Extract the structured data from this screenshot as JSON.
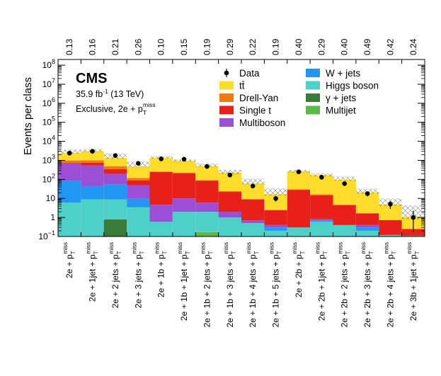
{
  "chart_data": {
    "type": "bar",
    "stacked": true,
    "log_y": true,
    "ylim": [
      0.1,
      200000000
    ],
    "ylabel": "Events per class",
    "y_ticks": [
      {
        "value": 0.1,
        "base": "10",
        "exp": "−1"
      },
      {
        "value": 1,
        "label": "1"
      },
      {
        "value": 10,
        "label": "10"
      },
      {
        "value": 100,
        "base": "10",
        "exp": "2"
      },
      {
        "value": 1000,
        "base": "10",
        "exp": "3"
      },
      {
        "value": 10000,
        "base": "10",
        "exp": "4"
      },
      {
        "value": 100000,
        "base": "10",
        "exp": "5"
      },
      {
        "value": 1000000,
        "base": "10",
        "exp": "6"
      },
      {
        "value": 10000000,
        "base": "10",
        "exp": "7"
      },
      {
        "value": 100000000,
        "base": "10",
        "exp": "8"
      }
    ],
    "categories": [
      "2e + p_T^miss",
      "2e + 1jet + p_T^miss",
      "2e + 2 jets + p_T^miss",
      "2e + 3 jets + p_T^miss",
      "2e + 1b + p_T^miss",
      "2e + 1b + 1jet + p_T^miss",
      "2e + 1b + 2 jets + p_T^miss",
      "2e + 1b + 3 jets + p_T^miss",
      "2e + 1b + 4 jets + p_T^miss",
      "2e + 1b + 5 jets + p_T^miss",
      "2e + 2b + p_T^miss",
      "2e + 2b + 1jet + p_T^miss",
      "2e + 2b + 2 jets + p_T^miss",
      "2e + 2b + 3 jets + p_T^miss",
      "2e + 2b + 4 jets + p_T^miss",
      "2e + 3b + 1jet + p_T^miss"
    ],
    "p_values": [
      "0.13",
      "0.16",
      "0.21",
      "0.26",
      "0.10",
      "0.15",
      "0.19",
      "0.29",
      "0.22",
      "0.19",
      "0.40",
      "0.29",
      "0.40",
      "0.49",
      "0.42",
      "0.24"
    ],
    "series": [
      {
        "name": "Multijet",
        "color": "#5cb849",
        "values": [
          0,
          0,
          0,
          0,
          0,
          0,
          0.17,
          0,
          0,
          0,
          0,
          0,
          0,
          0,
          0,
          0
        ]
      },
      {
        "name": "γ + jets",
        "color": "#3a7a3a",
        "values": [
          0,
          0,
          0.8,
          0,
          0,
          0,
          0,
          0,
          0,
          0,
          0,
          0,
          0,
          0,
          0,
          0
        ]
      },
      {
        "name": "Higgs boson",
        "color": "#4dd0c8",
        "values": [
          6,
          9,
          8,
          3.5,
          0.6,
          2,
          1.8,
          1,
          0.5,
          0.2,
          0.3,
          0.6,
          0.4,
          0.2,
          0.12,
          0.11
        ]
      },
      {
        "name": "W + jets",
        "color": "#2196f3",
        "values": [
          80,
          35,
          45,
          6,
          0,
          0,
          0,
          0,
          0,
          0.1,
          0,
          0.1,
          0,
          0.1,
          0,
          0
        ]
      },
      {
        "name": "Multiboson",
        "color": "#9b4fd6",
        "values": [
          600,
          500,
          140,
          40,
          4,
          8,
          4,
          1,
          0.2,
          0.1,
          0,
          0.1,
          0,
          0.1,
          0,
          0
        ]
      },
      {
        "name": "Single t",
        "color": "#e8201a",
        "values": [
          50,
          200,
          150,
          40,
          240,
          200,
          80,
          20,
          8,
          2,
          28,
          14,
          4,
          1.2,
          0.6,
          0.14
        ]
      },
      {
        "name": "Drell-Yan",
        "color": "#ee7a10",
        "values": [
          250,
          250,
          150,
          30,
          15,
          20,
          6,
          2,
          0.8,
          0.1,
          2,
          1.5,
          0.4,
          0.1,
          0,
          0
        ]
      },
      {
        "name": "tt̄",
        "color": "#fddc2a",
        "values": [
          1500,
          2000,
          850,
          350,
          1100,
          700,
          400,
          200,
          50,
          14,
          230,
          150,
          90,
          19,
          4,
          0.8
        ]
      }
    ],
    "uncertainty_band": {
      "label": "uncertainty",
      "lo": [
        2300,
        2750,
        1200,
        430,
        1250,
        850,
        450,
        190,
        55,
        14,
        230,
        145,
        85,
        18,
        4.0,
        0.8
      ],
      "hi": [
        3700,
        3900,
        2300,
        900,
        1700,
        1150,
        700,
        320,
        110,
        34,
        320,
        210,
        140,
        32,
        10,
        4.2
      ]
    },
    "data": {
      "name": "Data",
      "values": [
        2400,
        3000,
        1800,
        700,
        1200,
        1150,
        480,
        170,
        45,
        10,
        250,
        130,
        60,
        18,
        5,
        1
      ],
      "err_lo": [
        2250,
        2830,
        1660,
        650,
        1130,
        1080,
        440,
        145,
        35,
        6.8,
        220,
        110,
        47,
        13,
        2.8,
        0.17
      ],
      "err_hi": [
        2550,
        3170,
        1940,
        750,
        1270,
        1220,
        520,
        195,
        55,
        13.2,
        280,
        150,
        73,
        23,
        7.2,
        2.3
      ]
    },
    "legend": {
      "placement": "top-right",
      "left_column": [
        "Data",
        "tt̄",
        "Drell-Yan",
        "Single t",
        "Multiboson"
      ],
      "right_column": [
        "W + jets",
        "Higgs boson",
        "γ + jets",
        "Multijet"
      ]
    },
    "annotation": {
      "cms": "CMS",
      "lumi_value": "35.9 fb",
      "lumi_exp": "-1",
      "lumi_energy": " (13 TeV)",
      "class_prefix": "Exclusive, 2e + p",
      "class_sub": "T",
      "class_sup": "miss"
    }
  }
}
